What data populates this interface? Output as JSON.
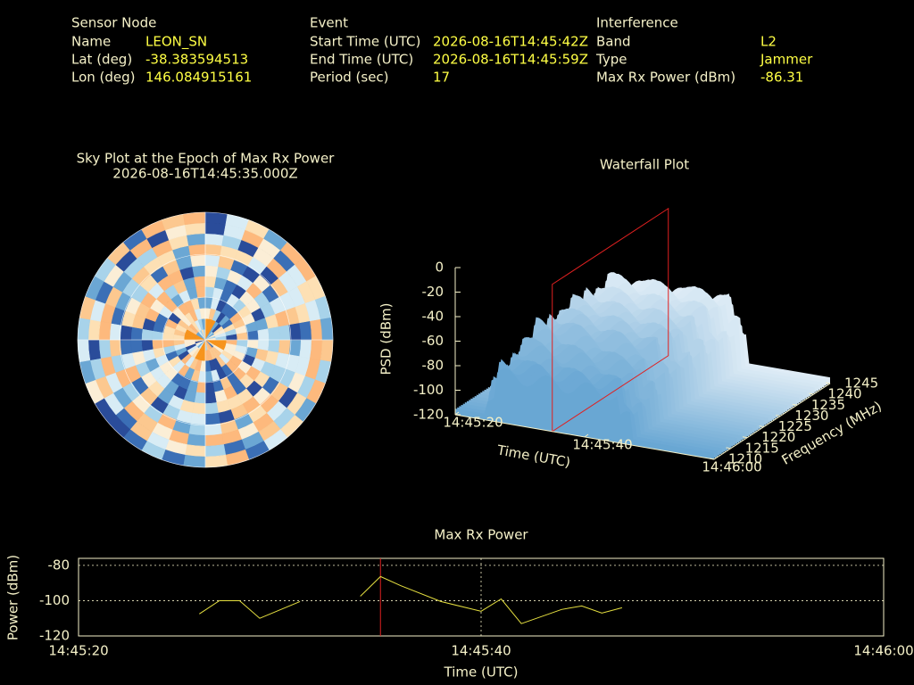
{
  "header": {
    "sensor": {
      "title": "Sensor Node",
      "rows": [
        [
          "Name",
          "LEON_SN"
        ],
        [
          "Lat (deg)",
          "-38.383594513"
        ],
        [
          "Lon (deg)",
          "146.084915161"
        ]
      ]
    },
    "event": {
      "title": "Event",
      "rows": [
        [
          "Start Time (UTC)",
          "2026-08-16T14:45:42Z"
        ],
        [
          "End Time (UTC)",
          "2026-08-16T14:45:59Z"
        ],
        [
          "Period (sec)",
          "17"
        ]
      ]
    },
    "interference": {
      "title": "Interference",
      "rows": [
        [
          "Band",
          "L2"
        ],
        [
          "Type",
          "Jammer"
        ],
        [
          "Max Rx Power (dBm)",
          "-86.31"
        ]
      ]
    }
  },
  "chart_data": [
    {
      "type": "skyplot",
      "title": "Sky Plot at the Epoch of Max Rx Power",
      "subtitle": "2026-08-16T14:45:35.000Z"
    },
    {
      "type": "surface3d",
      "title": "Waterfall Plot",
      "xlabel": "Time (UTC)",
      "ylabel": "Frequency (MHz)",
      "zlabel": "PSD (dBm)",
      "xlim": [
        "14:45:20",
        "14:46:00"
      ],
      "xticks": [
        "14:45:20",
        "14:45:40",
        "14:46:00"
      ],
      "ylim": [
        1210,
        1245
      ],
      "yticks": [
        1210,
        1215,
        1220,
        1225,
        1230,
        1235,
        1240,
        1245
      ],
      "zlim": [
        -120,
        0
      ],
      "zticks": [
        0,
        -20,
        -40,
        -60,
        -80,
        -100,
        -120
      ]
    },
    {
      "type": "line",
      "title": "Max Rx Power",
      "xlabel": "Time (UTC)",
      "ylabel": "Power (dBm)",
      "xlim": [
        "14:45:20",
        "14:46:00"
      ],
      "xticks": [
        "14:45:20",
        "14:45:40",
        "14:46:00"
      ],
      "ylim": [
        -120,
        -76
      ],
      "yticks": [
        -80,
        -100,
        -120
      ],
      "grid": true,
      "color": "#e6e040",
      "x": [
        "14:45:26",
        "14:45:27",
        "14:45:28",
        "14:45:29",
        "14:45:31",
        "14:45:32",
        "14:45:34",
        "14:45:35",
        "14:45:36",
        "14:45:38",
        "14:45:40",
        "14:45:41",
        "14:45:42",
        "14:45:44",
        "14:45:45",
        "14:45:46",
        "14:45:47"
      ],
      "values": [
        -107.5,
        -100,
        -100,
        -110,
        -100.5,
        null,
        -97.5,
        -86.3,
        -91.5,
        -100.5,
        -106,
        -99,
        -113,
        -105,
        -103,
        -107,
        -104
      ]
    }
  ]
}
